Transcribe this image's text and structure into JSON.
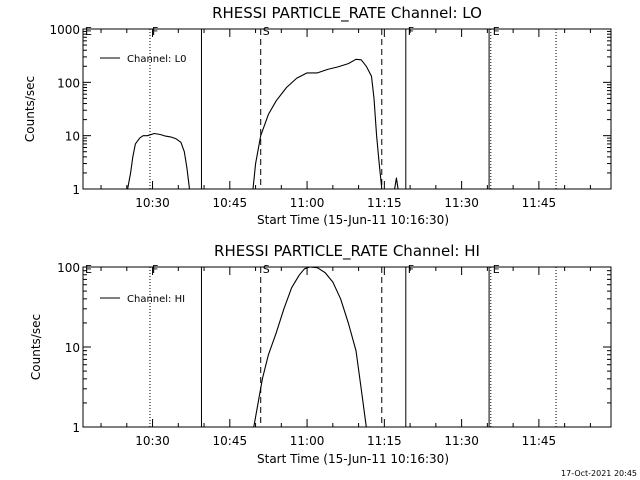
{
  "chart_data": [
    {
      "type": "line",
      "title": "RHESSI  PARTICLE_RATE  Channel: LO",
      "xlabel": "Start Time (15-Jun-11 10:16:30)",
      "ylabel": "Counts/sec",
      "yscale": "log",
      "ylim": [
        1,
        1000
      ],
      "xlim": [
        "10:16:30",
        "11:59:00"
      ],
      "x_ticks": [
        "10:30",
        "10:45",
        "11:00",
        "11:15",
        "11:30",
        "11:45"
      ],
      "y_ticks": [
        "1",
        "10",
        "100",
        "1000"
      ],
      "legend": "top-left",
      "series": [
        {
          "name": "Channel: L0",
          "points": [
            [
              "10:25:10",
              1
            ],
            [
              "10:25:45",
              2
            ],
            [
              "10:26:10",
              4
            ],
            [
              "10:26:40",
              7
            ],
            [
              "10:27:30",
              9
            ],
            [
              "10:28:10",
              10
            ],
            [
              "10:29:00",
              10
            ],
            [
              "10:30:20",
              11
            ],
            [
              "10:31:30",
              10.5
            ],
            [
              "10:32:30",
              9.8
            ],
            [
              "10:33:30",
              9.5
            ],
            [
              "10:34:30",
              8.8
            ],
            [
              "10:35:30",
              7.5
            ],
            [
              "10:36:10",
              5
            ],
            [
              "10:36:40",
              2.5
            ],
            [
              "10:37:10",
              1
            ]
          ]
        },
        {
          "name": "",
          "points": [
            [
              "10:49:30",
              1
            ],
            [
              "10:50:00",
              3
            ],
            [
              "10:51:00",
              10
            ],
            [
              "10:52:30",
              25
            ],
            [
              "10:54:00",
              45
            ],
            [
              "10:56:00",
              80
            ],
            [
              "10:58:00",
              120
            ],
            [
              "11:00:00",
              150
            ],
            [
              "11:02:00",
              150
            ],
            [
              "11:04:00",
              175
            ],
            [
              "11:06:00",
              195
            ],
            [
              "11:08:00",
              225
            ],
            [
              "11:09:30",
              270
            ],
            [
              "11:10:30",
              265
            ],
            [
              "11:11:30",
              200
            ],
            [
              "11:12:30",
              130
            ],
            [
              "11:13:00",
              50
            ],
            [
              "11:13:30",
              10
            ],
            [
              "11:14:00",
              3
            ],
            [
              "11:14:30",
              1
            ]
          ]
        },
        {
          "name": "",
          "points": [
            [
              "11:17:00",
              1
            ],
            [
              "11:17:20",
              1.6
            ],
            [
              "11:17:40",
              1
            ]
          ]
        }
      ],
      "markers": [
        {
          "label": "E",
          "time": "10:16:30",
          "style": "dotted"
        },
        {
          "label": "F",
          "time": "10:29:30",
          "style": "dotted"
        },
        {
          "label": "",
          "time": "10:39:30",
          "style": "solid"
        },
        {
          "label": "S",
          "time": "10:51:00",
          "style": "dashed"
        },
        {
          "label": "",
          "time": "11:14:30",
          "style": "dashed"
        },
        {
          "label": "F",
          "time": "11:19:10",
          "style": "solid"
        },
        {
          "label": "E",
          "time": "11:35:40",
          "style": "dotted"
        },
        {
          "label": "",
          "time": "11:35:20",
          "style": "solid"
        },
        {
          "label": "",
          "time": "11:48:20",
          "style": "dotted"
        }
      ]
    },
    {
      "type": "line",
      "title": "RHESSI  PARTICLE_RATE  Channel: HI",
      "xlabel": "Start Time (15-Jun-11 10:16:30)",
      "ylabel": "Counts/sec",
      "yscale": "log",
      "ylim": [
        1,
        100
      ],
      "xlim": [
        "10:16:30",
        "11:59:00"
      ],
      "x_ticks": [
        "10:30",
        "10:45",
        "11:00",
        "11:15",
        "11:30",
        "11:45"
      ],
      "y_ticks": [
        "1",
        "10",
        "100"
      ],
      "legend": "top-left",
      "series": [
        {
          "name": "Channel: HI",
          "points": [
            [
              "10:49:40",
              1
            ],
            [
              "10:50:30",
              2
            ],
            [
              "10:51:20",
              4
            ],
            [
              "10:52:30",
              8
            ],
            [
              "10:54:00",
              15
            ],
            [
              "10:55:30",
              30
            ],
            [
              "10:57:00",
              55
            ],
            [
              "10:58:30",
              80
            ],
            [
              "10:59:30",
              95
            ],
            [
              "11:00:30",
              100
            ],
            [
              "11:02:00",
              98
            ],
            [
              "11:03:30",
              85
            ],
            [
              "11:05:00",
              65
            ],
            [
              "11:06:30",
              40
            ],
            [
              "11:08:00",
              20
            ],
            [
              "11:09:30",
              9
            ],
            [
              "11:10:30",
              3
            ],
            [
              "11:11:30",
              1
            ]
          ]
        }
      ],
      "markers": [
        {
          "label": "E",
          "time": "10:16:30",
          "style": "dotted"
        },
        {
          "label": "F",
          "time": "10:29:30",
          "style": "dotted"
        },
        {
          "label": "",
          "time": "10:39:30",
          "style": "solid"
        },
        {
          "label": "S",
          "time": "10:51:00",
          "style": "dashed"
        },
        {
          "label": "",
          "time": "11:14:30",
          "style": "dashed"
        },
        {
          "label": "F",
          "time": "11:19:10",
          "style": "solid"
        },
        {
          "label": "E",
          "time": "11:35:40",
          "style": "dotted"
        },
        {
          "label": "",
          "time": "11:35:20",
          "style": "solid"
        },
        {
          "label": "",
          "time": "11:48:20",
          "style": "dotted"
        }
      ]
    }
  ],
  "footer": {
    "timestamp": "17-Oct-2021 20:45"
  }
}
